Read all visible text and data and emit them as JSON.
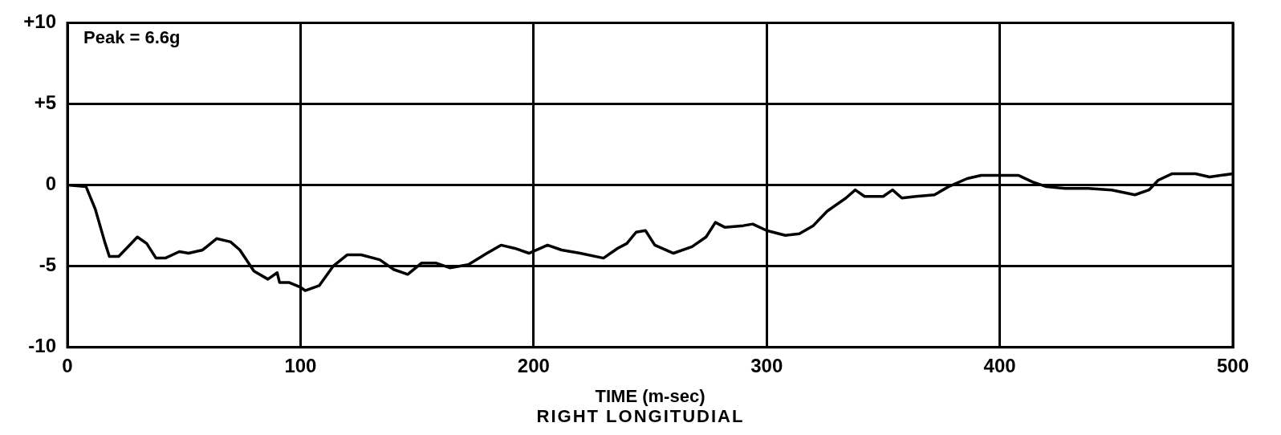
{
  "chart_data": {
    "type": "line",
    "xlabel": "TIME (m-sec)",
    "annotations": [
      "Peak = 6.6g",
      "RIGHT LONGITUDIAL"
    ],
    "x": [
      0,
      8,
      12,
      16,
      18,
      22,
      26,
      30,
      34,
      38,
      42,
      48,
      52,
      58,
      64,
      70,
      74,
      80,
      86,
      90,
      91,
      95,
      100,
      102,
      108,
      114,
      120,
      126,
      134,
      140,
      146,
      152,
      158,
      164,
      172,
      180,
      186,
      192,
      198,
      206,
      212,
      220,
      230,
      236,
      240,
      244,
      248,
      252,
      260,
      268,
      274,
      278,
      282,
      290,
      294,
      300,
      308,
      314,
      320,
      326,
      334,
      338,
      342,
      350,
      354,
      358,
      364,
      372,
      378,
      386,
      392,
      408,
      414,
      420,
      428,
      438,
      448,
      458,
      464,
      468,
      474,
      484,
      490,
      500
    ],
    "series": [
      {
        "color": "#000000",
        "values": [
          0,
          -0.1,
          -1.5,
          -3.5,
          -4.4,
          -4.4,
          -3.8,
          -3.2,
          -3.6,
          -4.5,
          -4.5,
          -4.1,
          -4.2,
          -4.0,
          -3.3,
          -3.5,
          -4.0,
          -5.3,
          -5.8,
          -5.4,
          -6.0,
          -6.0,
          -6.3,
          -6.5,
          -6.2,
          -5.0,
          -4.3,
          -4.3,
          -4.6,
          -5.2,
          -5.5,
          -4.8,
          -4.8,
          -5.1,
          -4.9,
          -4.2,
          -3.7,
          -3.9,
          -4.2,
          -3.7,
          -4.0,
          -4.2,
          -4.5,
          -3.9,
          -3.6,
          -2.9,
          -2.8,
          -3.7,
          -4.2,
          -3.8,
          -3.2,
          -2.3,
          -2.6,
          -2.5,
          -2.4,
          -2.8,
          -3.1,
          -3.0,
          -2.5,
          -1.6,
          -0.8,
          -0.3,
          -0.7,
          -0.7,
          -0.3,
          -0.8,
          -0.7,
          -0.6,
          -0.1,
          0.4,
          0.6,
          0.6,
          0.2,
          -0.1,
          -0.2,
          -0.2,
          -0.3,
          -0.6,
          -0.3,
          0.3,
          0.7,
          0.7,
          0.5,
          0.7
        ]
      }
    ],
    "xlim": [
      0,
      500
    ],
    "xticks": [
      0,
      100,
      200,
      300,
      400,
      500
    ],
    "ylim": [
      -10,
      10
    ],
    "yticks": [
      -10,
      -5,
      0,
      {
        "value": 5,
        "label": "+5"
      },
      {
        "value": 10,
        "label": "+10"
      }
    ],
    "grid": true,
    "legend": false,
    "marker": "none",
    "line_style": "solid"
  }
}
